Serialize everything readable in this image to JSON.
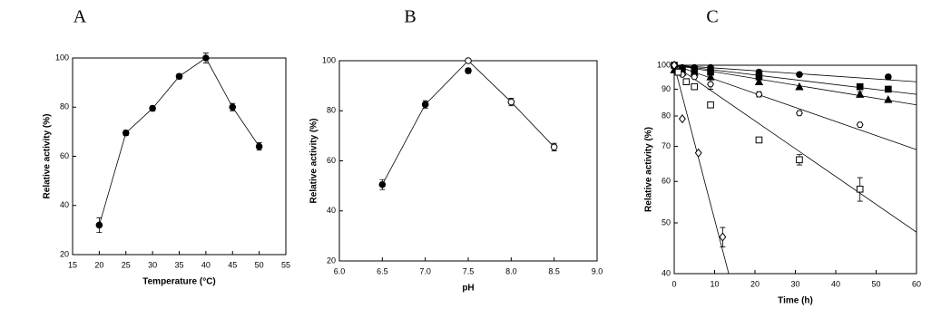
{
  "chart_data": [
    {
      "type": "scatter",
      "panel": "A",
      "xlabel": "Temperature (°C)",
      "ylabel": "Relative activity (%)",
      "xlim": [
        15,
        55
      ],
      "xticks": [
        15,
        20,
        25,
        30,
        35,
        40,
        45,
        50,
        55
      ],
      "ylim": [
        20,
        100
      ],
      "yticks": [
        20,
        40,
        60,
        80,
        100
      ],
      "log": false,
      "series": [
        {
          "color": "#000000",
          "marker": "circle",
          "fill": "#000000",
          "connect": true,
          "x": [
            20,
            25,
            30,
            35,
            40,
            45,
            50
          ],
          "values": [
            32,
            69.5,
            79.5,
            92.5,
            100,
            80,
            64
          ],
          "errors": [
            3,
            1,
            1,
            1,
            2,
            1.5,
            1.5
          ]
        }
      ]
    },
    {
      "type": "scatter",
      "panel": "B",
      "xlabel": "pH",
      "ylabel": "Relative activity (%)",
      "xlim": [
        6,
        9
      ],
      "xticks": [
        {
          "value": 6,
          "label": "6.0"
        },
        6.5,
        {
          "value": 7,
          "label": "7.0"
        },
        7.5,
        {
          "value": 8,
          "label": "8.0"
        },
        8.5,
        {
          "value": 9,
          "label": "9.0"
        }
      ],
      "ylim": [
        20,
        100
      ],
      "yticks": [
        20,
        40,
        60,
        80,
        100
      ],
      "log": false,
      "lines": [
        {
          "x": [
            6.5,
            7,
            7.5,
            8,
            8.5
          ],
          "values": [
            50.5,
            82.5,
            100,
            83.5,
            65.5
          ]
        }
      ],
      "series": [
        {
          "color": "#000000",
          "marker": "circle",
          "fill": "#000000",
          "x": [
            6.5,
            7,
            7.5
          ],
          "values": [
            50.5,
            82.5,
            96
          ],
          "errors": [
            2,
            1.5,
            1
          ]
        },
        {
          "color": "#000000",
          "marker": "circle",
          "fill": "#ffffff",
          "x": [
            7.5,
            8,
            8.5
          ],
          "values": [
            100,
            83.5,
            65.5
          ],
          "errors": [
            null,
            1.5,
            1.5
          ]
        }
      ]
    },
    {
      "type": "scatter",
      "panel": "C",
      "xlabel": "Time (h)",
      "ylabel": "Relative activity (%)",
      "xlim": [
        0,
        60
      ],
      "xticks": [
        0,
        10,
        20,
        30,
        40,
        50,
        60
      ],
      "ylim": [
        40,
        100
      ],
      "yticks": [
        40,
        50,
        60,
        70,
        80,
        90,
        100
      ],
      "log": true,
      "lines": [
        {
          "x": [
            0,
            60
          ],
          "values": [
            100,
            93
          ]
        },
        {
          "x": [
            0,
            60
          ],
          "values": [
            100,
            88
          ]
        },
        {
          "x": [
            0,
            60
          ],
          "values": [
            100,
            84
          ]
        },
        {
          "x": [
            0,
            60
          ],
          "values": [
            100,
            69
          ]
        },
        {
          "x": [
            0,
            60
          ],
          "values": [
            100,
            48
          ]
        },
        {
          "x": [
            0,
            13.5
          ],
          "values": [
            100,
            40
          ]
        }
      ],
      "series": [
        {
          "color": "#000000",
          "marker": "circle",
          "fill": "#000000",
          "x": [
            0,
            2,
            5,
            9,
            21,
            31,
            53
          ],
          "values": [
            100,
            99,
            99,
            99,
            97,
            96,
            95
          ],
          "errors": [
            null,
            null,
            null,
            1,
            1,
            null,
            1
          ]
        },
        {
          "color": "#000000",
          "marker": "square",
          "fill": "#000000",
          "x": [
            0,
            2,
            5,
            9,
            21,
            46,
            53
          ],
          "values": [
            100,
            98,
            98,
            97,
            95,
            91,
            90
          ],
          "errors": [
            null,
            null,
            null,
            1,
            1,
            null,
            null
          ]
        },
        {
          "color": "#000000",
          "marker": "triangle",
          "fill": "#000000",
          "x": [
            0,
            2,
            5,
            9,
            21,
            31,
            46,
            53
          ],
          "values": [
            98,
            97,
            97,
            95,
            93,
            91,
            88,
            86
          ],
          "errors": [
            null,
            null,
            null,
            null,
            null,
            null,
            1,
            null
          ]
        },
        {
          "color": "#000000",
          "marker": "hexagon",
          "fill": "#ffffff",
          "x": [
            0,
            2,
            5,
            9,
            21,
            31,
            46
          ],
          "values": [
            100,
            96,
            95,
            92,
            88,
            81,
            77
          ],
          "errors": [
            null,
            null,
            null,
            2,
            1,
            null,
            null
          ]
        },
        {
          "color": "#000000",
          "marker": "square",
          "fill": "#ffffff",
          "x": [
            1,
            3,
            5,
            9,
            21,
            31,
            46
          ],
          "values": [
            97,
            93,
            91,
            84,
            72,
            66,
            58
          ],
          "errors": [
            null,
            null,
            null,
            null,
            null,
            1.5,
            3
          ]
        },
        {
          "color": "#000000",
          "marker": "diamond",
          "fill": "#ffffff",
          "x": [
            0,
            2,
            6,
            12
          ],
          "values": [
            100,
            79,
            68,
            47
          ],
          "errors": [
            null,
            null,
            null,
            2
          ]
        }
      ]
    }
  ]
}
